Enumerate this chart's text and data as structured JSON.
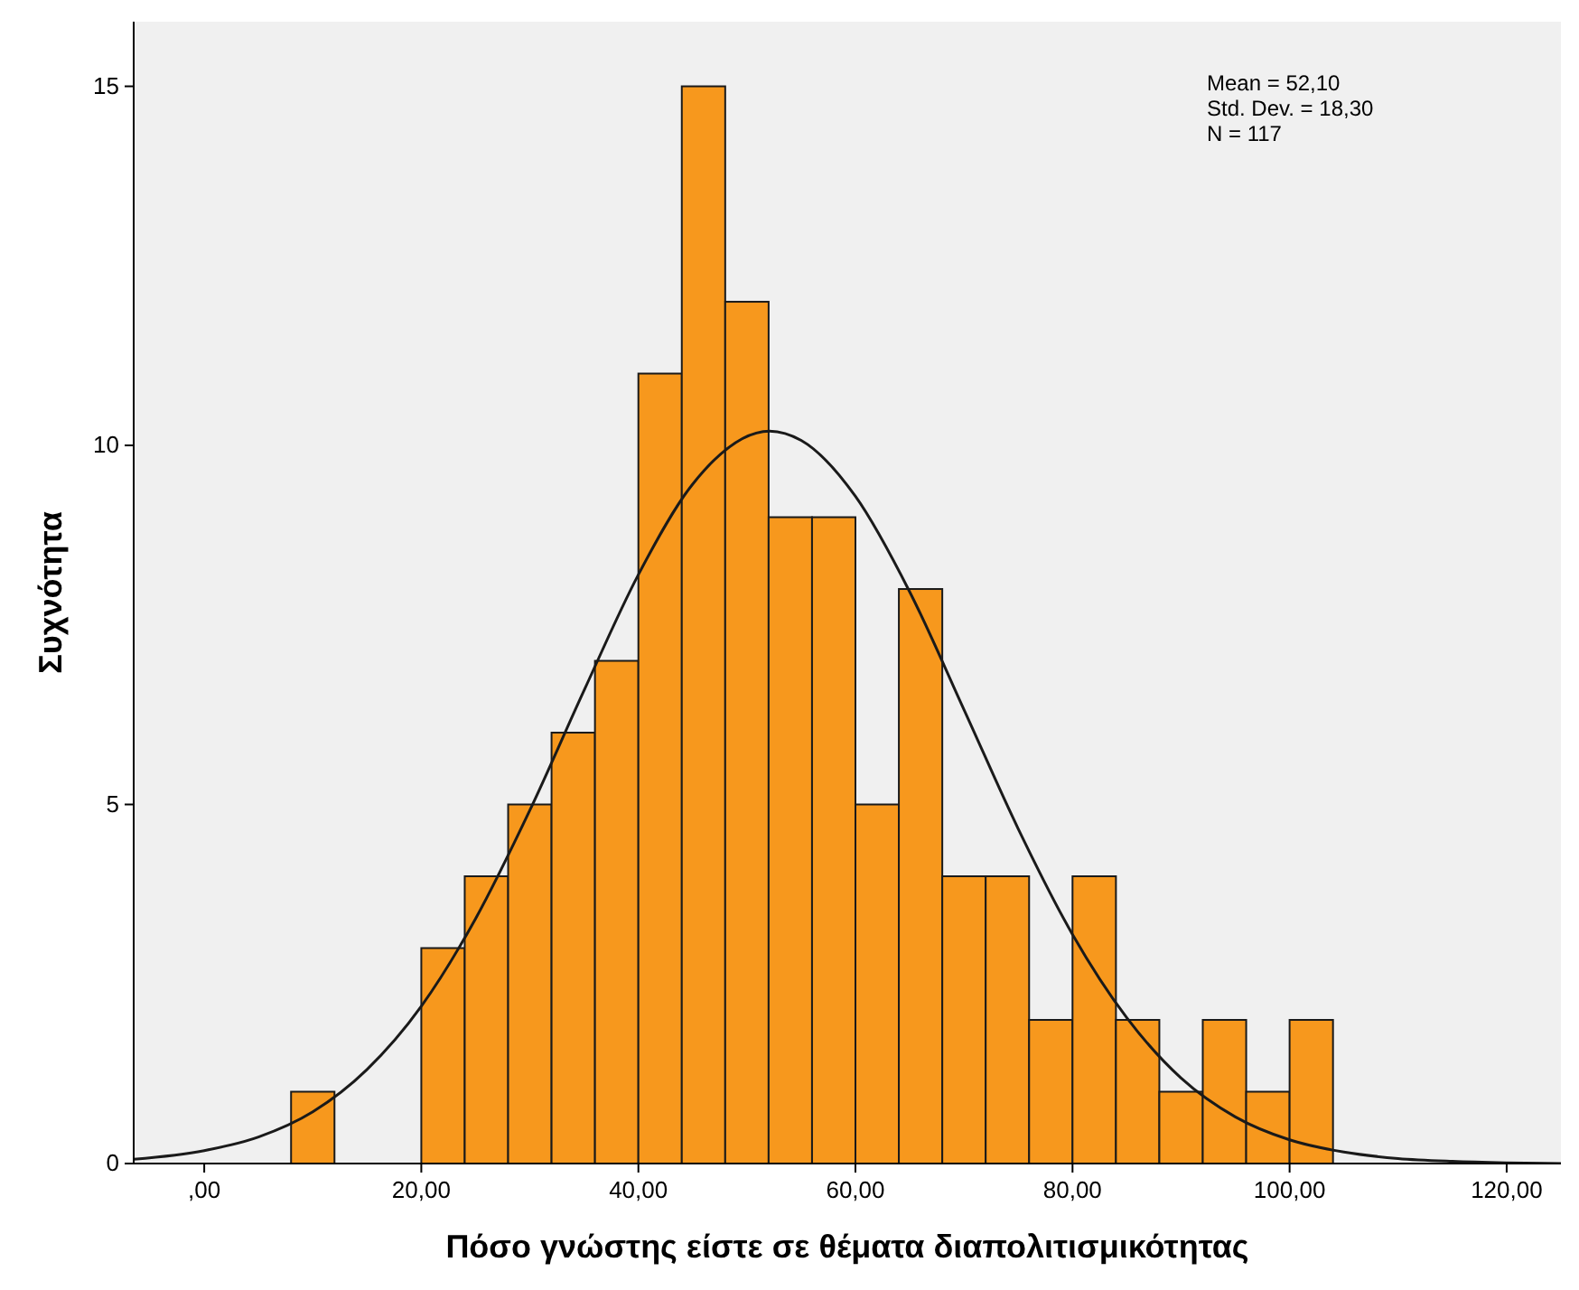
{
  "chart_data": {
    "type": "histogram",
    "xlabel": "Πόσο γνώστης είστε σε θέματα διαπολιτισμικότητας",
    "ylabel": "Συχνότητα",
    "bins": [
      8,
      12,
      16,
      20,
      24,
      28,
      32,
      36,
      40,
      44,
      48,
      52,
      56,
      60,
      64,
      68,
      72,
      76,
      80,
      84,
      88,
      92,
      96,
      100,
      104
    ],
    "values": [
      1,
      0,
      0,
      3,
      4,
      5,
      6,
      7,
      11,
      15,
      12,
      9,
      9,
      5,
      8,
      4,
      4,
      2,
      4,
      2,
      1,
      2,
      1,
      2
    ],
    "color": "#f7981d",
    "series": [
      {
        "type": "line",
        "color": "#1a1a1a",
        "x": [
          -6.5,
          0,
          5,
          10,
          15,
          20,
          25,
          30,
          35,
          40,
          45,
          52.1,
          55,
          60,
          65,
          70,
          75,
          80,
          85,
          90,
          95,
          100,
          105,
          110,
          115,
          120,
          125
        ],
        "values": [
          0.06,
          0.18,
          0.37,
          0.72,
          1.31,
          2.19,
          3.41,
          4.92,
          6.59,
          8.2,
          9.46,
          10.2,
          10.07,
          9.29,
          7.96,
          6.32,
          4.66,
          3.19,
          2.03,
          1.19,
          0.65,
          0.33,
          0.16,
          0.07,
          0.03,
          0.01,
          0
        ]
      }
    ],
    "xlim": [
      -6.5,
      125
    ],
    "ylim": [
      0,
      15.9
    ],
    "xticks": [
      {
        "value": 0,
        "label": ",00"
      },
      {
        "value": 20,
        "label": "20,00"
      },
      {
        "value": 40,
        "label": "40,00"
      },
      {
        "value": 60,
        "label": "60,00"
      },
      {
        "value": 80,
        "label": "80,00"
      },
      {
        "value": 100,
        "label": "100,00"
      },
      {
        "value": 120,
        "label": "120,00"
      }
    ],
    "yticks": [
      0,
      5,
      10,
      15
    ],
    "annotations": [
      "Mean = 52,10",
      "Std. Dev. = 18,30",
      "N = 117"
    ]
  }
}
